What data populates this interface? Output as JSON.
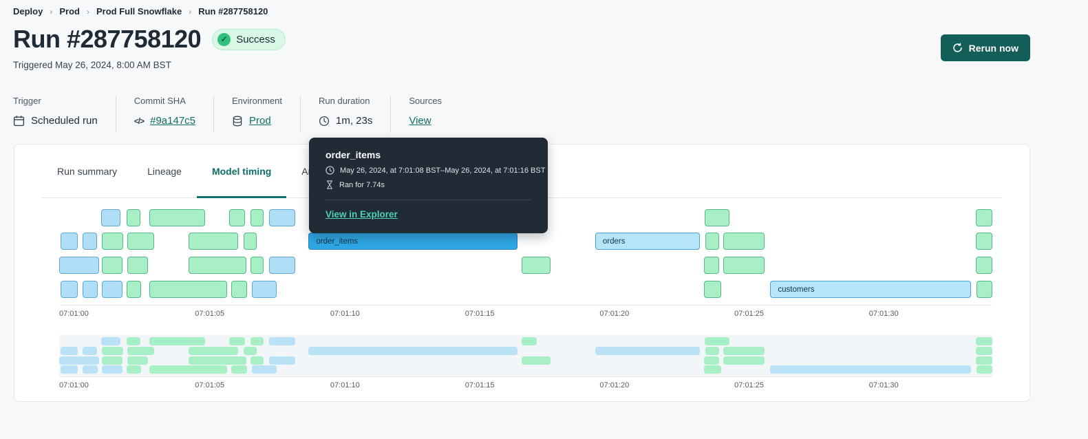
{
  "breadcrumb": {
    "separator": "›",
    "items": [
      "Deploy",
      "Prod",
      "Prod Full Snowflake",
      "Run #287758120"
    ]
  },
  "header": {
    "title": "Run #287758120",
    "status_badge": "Success",
    "triggered": "Triggered May 26, 2024, 8:00 AM BST",
    "rerun_label": "Rerun now"
  },
  "run_meta": {
    "columns": [
      {
        "label": "Trigger",
        "value": "Scheduled run",
        "icon": "calendar-icon",
        "link": false
      },
      {
        "label": "Commit SHA",
        "value": "#9a147c5",
        "icon": "code-icon",
        "link": true
      },
      {
        "label": "Environment",
        "value": "Prod",
        "icon": "database-icon",
        "link": true
      },
      {
        "label": "Run duration",
        "value": "1m, 23s",
        "icon": "clock-icon",
        "link": false
      },
      {
        "label": "Sources",
        "value": "View",
        "icon": null,
        "link": true
      }
    ]
  },
  "tabs": [
    {
      "label": "Run summary",
      "active": false
    },
    {
      "label": "Lineage",
      "active": false
    },
    {
      "label": "Model timing",
      "active": true
    },
    {
      "label": "Artifacts",
      "active": false
    }
  ],
  "tooltip": {
    "title": "order_items",
    "time_range": "May 26, 2024, at 7:01:08 BST–May 26, 2024, at 7:01:16 BST",
    "duration": "Ran for 7.74s",
    "link": "View in Explorer"
  },
  "timing_chart": {
    "type": "gantt",
    "axis_ticks": [
      {
        "label": "07:01:00",
        "pct": 1.58
      },
      {
        "label": "07:01:05",
        "pct": 16.13
      },
      {
        "label": "07:01:10",
        "pct": 30.63
      },
      {
        "label": "07:01:15",
        "pct": 45.07
      },
      {
        "label": "07:01:20",
        "pct": 59.5
      },
      {
        "label": "07:01:25",
        "pct": 73.93
      },
      {
        "label": "07:01:30",
        "pct": 88.36
      }
    ],
    "rows": [
      [
        {
          "c": "b",
          "l": 4.49,
          "w": 2.06
        },
        {
          "c": "g",
          "l": 7.22,
          "w": 1.47
        },
        {
          "c": "g",
          "l": 9.65,
          "w": 5.96
        },
        {
          "c": "g",
          "l": 18.19,
          "w": 1.69
        },
        {
          "c": "g",
          "l": 20.47,
          "w": 1.47
        },
        {
          "c": "b",
          "l": 22.46,
          "w": 2.8
        },
        {
          "c": "g",
          "l": 49.56,
          "w": 1.62
        },
        {
          "c": "g",
          "l": 69.15,
          "w": 2.65
        },
        {
          "c": "g",
          "l": 98.23,
          "w": 1.77
        }
      ],
      [
        {
          "c": "b",
          "l": 0.15,
          "w": 1.84
        },
        {
          "c": "b",
          "l": 2.5,
          "w": 1.55
        },
        {
          "c": "g",
          "l": 4.57,
          "w": 2.28
        },
        {
          "c": "g",
          "l": 7.29,
          "w": 2.87
        },
        {
          "c": "g",
          "l": 13.84,
          "w": 5.3
        },
        {
          "c": "g",
          "l": 19.73,
          "w": 1.4
        },
        {
          "c": "a",
          "l": 26.73,
          "w": 22.39,
          "label": "order_items"
        },
        {
          "c": "bl",
          "l": 57.44,
          "w": 11.19,
          "label": "orders"
        },
        {
          "c": "g",
          "l": 69.22,
          "w": 1.47
        },
        {
          "c": "g",
          "l": 71.13,
          "w": 4.49
        },
        {
          "c": "g",
          "l": 98.23,
          "w": 1.77
        }
      ],
      [
        {
          "c": "b",
          "l": 0,
          "w": 4.27
        },
        {
          "c": "g",
          "l": 4.57,
          "w": 2.21
        },
        {
          "c": "g",
          "l": 7.29,
          "w": 2.21
        },
        {
          "c": "g",
          "l": 13.84,
          "w": 6.19
        },
        {
          "c": "g",
          "l": 20.47,
          "w": 1.47
        },
        {
          "c": "b",
          "l": 22.46,
          "w": 2.8
        },
        {
          "c": "g",
          "l": 49.56,
          "w": 3.09
        },
        {
          "c": "g",
          "l": 69.07,
          "w": 1.62
        },
        {
          "c": "g",
          "l": 71.13,
          "w": 4.49
        },
        {
          "c": "g",
          "l": 98.23,
          "w": 1.77
        }
      ],
      [
        {
          "c": "b",
          "l": 0.15,
          "w": 1.84
        },
        {
          "c": "b",
          "l": 2.5,
          "w": 1.62
        },
        {
          "c": "b",
          "l": 4.57,
          "w": 2.21
        },
        {
          "c": "g",
          "l": 7.22,
          "w": 1.55
        },
        {
          "c": "g",
          "l": 9.65,
          "w": 8.32
        },
        {
          "c": "g",
          "l": 18.41,
          "w": 1.69
        },
        {
          "c": "b",
          "l": 20.62,
          "w": 2.65
        },
        {
          "c": "g",
          "l": 69.07,
          "w": 1.84
        },
        {
          "c": "bl",
          "l": 76.21,
          "w": 21.5,
          "label": "customers"
        },
        {
          "c": "g",
          "l": 98.31,
          "w": 1.69
        }
      ]
    ]
  },
  "colors": {
    "accent_teal": "#0c6e64",
    "button_teal": "#135e58",
    "success_bg": "#d9f7e5",
    "success_dot": "#31bf80",
    "bar_green": "#a8efc5",
    "bar_blue": "#b0def7",
    "bar_active_blue": "#2fa7e5",
    "tooltip_bg": "#202b36",
    "tooltip_link": "#4cd2b6"
  }
}
